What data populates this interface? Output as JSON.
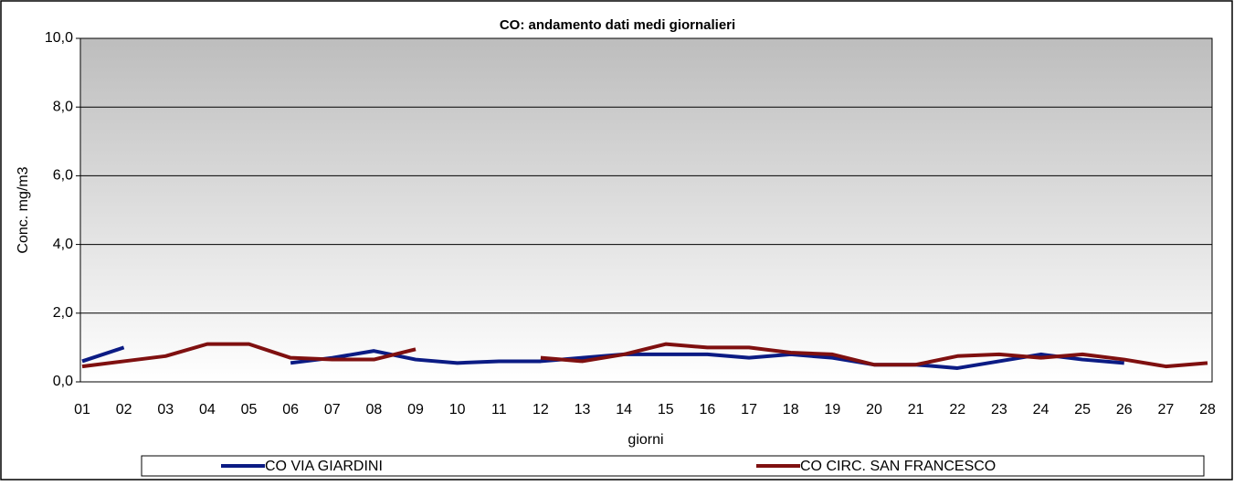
{
  "chart_data": {
    "type": "line",
    "title": "CO: andamento dati medi giornalieri",
    "y_label": "Conc. mg/m3",
    "x_label": "giorni",
    "categories": [
      "01",
      "02",
      "03",
      "04",
      "05",
      "06",
      "07",
      "08",
      "09",
      "10",
      "11",
      "12",
      "13",
      "14",
      "15",
      "16",
      "17",
      "18",
      "19",
      "20",
      "21",
      "22",
      "23",
      "24",
      "25",
      "26",
      "27",
      "28"
    ],
    "series": [
      {
        "name": "CO VIA GIARDINI",
        "color": "#0b1b84",
        "values": [
          0.6,
          1.0,
          null,
          null,
          null,
          0.55,
          0.7,
          0.9,
          0.65,
          0.55,
          0.6,
          0.6,
          0.7,
          0.8,
          0.8,
          0.8,
          0.7,
          0.8,
          0.7,
          0.5,
          0.5,
          0.4,
          0.6,
          0.8,
          0.65,
          0.55,
          null,
          null
        ]
      },
      {
        "name": "CO CIRC. SAN FRANCESCO",
        "color": "#7f1010",
        "values": [
          0.45,
          0.6,
          0.75,
          1.1,
          1.1,
          0.7,
          0.65,
          0.65,
          0.95,
          null,
          null,
          0.7,
          0.6,
          0.8,
          1.1,
          1.0,
          1.0,
          0.85,
          0.8,
          0.5,
          0.5,
          0.75,
          0.8,
          0.7,
          0.8,
          0.65,
          0.45,
          0.55
        ]
      }
    ],
    "ylim": [
      0,
      10
    ],
    "yticks": [
      {
        "value": 0,
        "label": "0,0"
      },
      {
        "value": 2,
        "label": "2,0"
      },
      {
        "value": 4,
        "label": "4,0"
      },
      {
        "value": 6,
        "label": "6,0"
      },
      {
        "value": 8,
        "label": "8,0"
      },
      {
        "value": 10,
        "label": "10,0"
      }
    ],
    "grid": true,
    "legend": "bottom"
  }
}
